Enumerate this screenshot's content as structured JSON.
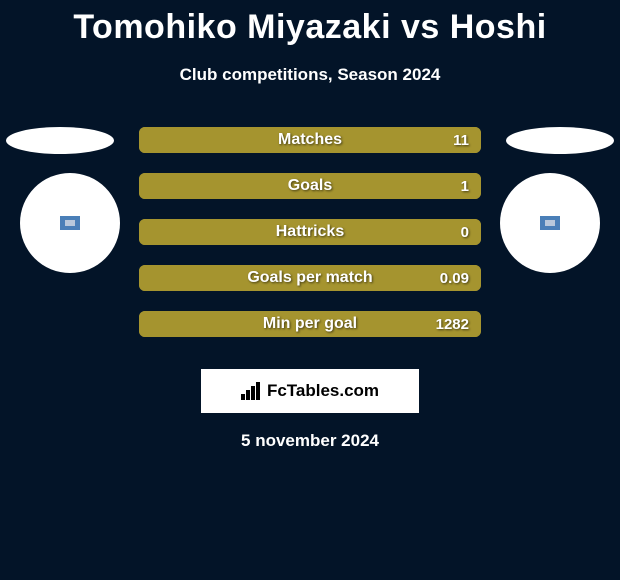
{
  "title": "Tomohiko Miyazaki vs Hoshi",
  "subtitle": "Club competitions, Season 2024",
  "colors": {
    "background": "#031428",
    "bar_fill": "#a5942f",
    "bar_outline": "#a5942f",
    "text": "#ffffff",
    "side_shape": "#ffffff",
    "brand_bg": "#ffffff",
    "brand_text": "#000000"
  },
  "stats": [
    {
      "label": "Matches",
      "value": "11",
      "fill_pct": 100
    },
    {
      "label": "Goals",
      "value": "1",
      "fill_pct": 100
    },
    {
      "label": "Hattricks",
      "value": "0",
      "fill_pct": 100
    },
    {
      "label": "Goals per match",
      "value": "0.09",
      "fill_pct": 100
    },
    {
      "label": "Min per goal",
      "value": "1282",
      "fill_pct": 100
    }
  ],
  "brand": "FcTables.com",
  "date": "5 november 2024"
}
